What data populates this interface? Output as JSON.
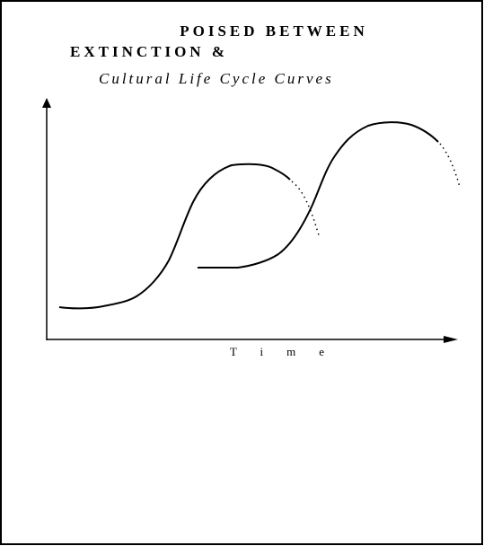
{
  "title": {
    "line1": "POISED BETWEEN",
    "line2": "EXTINCTION &",
    "subtitle": "Cultural Life Cycle Curves"
  },
  "x_axis_label": "Time"
}
